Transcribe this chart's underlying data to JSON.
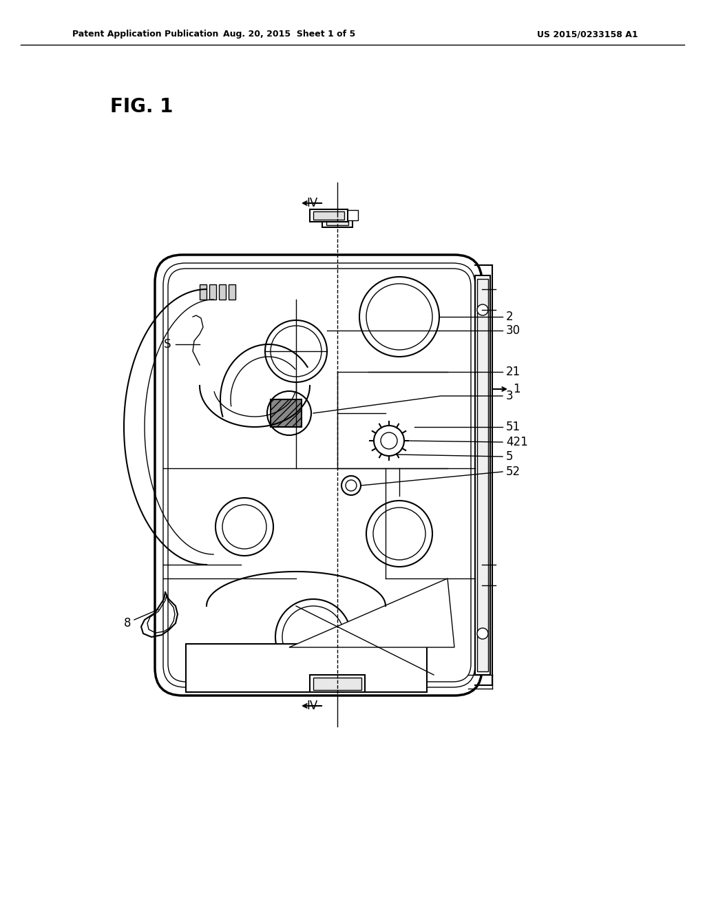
{
  "background_color": "#ffffff",
  "header_left": "Patent Application Publication",
  "header_center": "Aug. 20, 2015  Sheet 1 of 5",
  "header_right": "US 2015/0233158 A1",
  "fig_label": "FIG. 1",
  "ref_labels": {
    "IV_top": "IV",
    "IV_bottom": "IV",
    "S": "S",
    "1": "1",
    "2": "2",
    "3": "3",
    "5": "5",
    "8": "8",
    "21": "21",
    "30": "30",
    "51": "51",
    "52": "52",
    "421": "421"
  },
  "text_color": "#000000",
  "line_color": "#000000",
  "gray_fill": "#c8c8c8",
  "light_gray": "#e0e0e0"
}
